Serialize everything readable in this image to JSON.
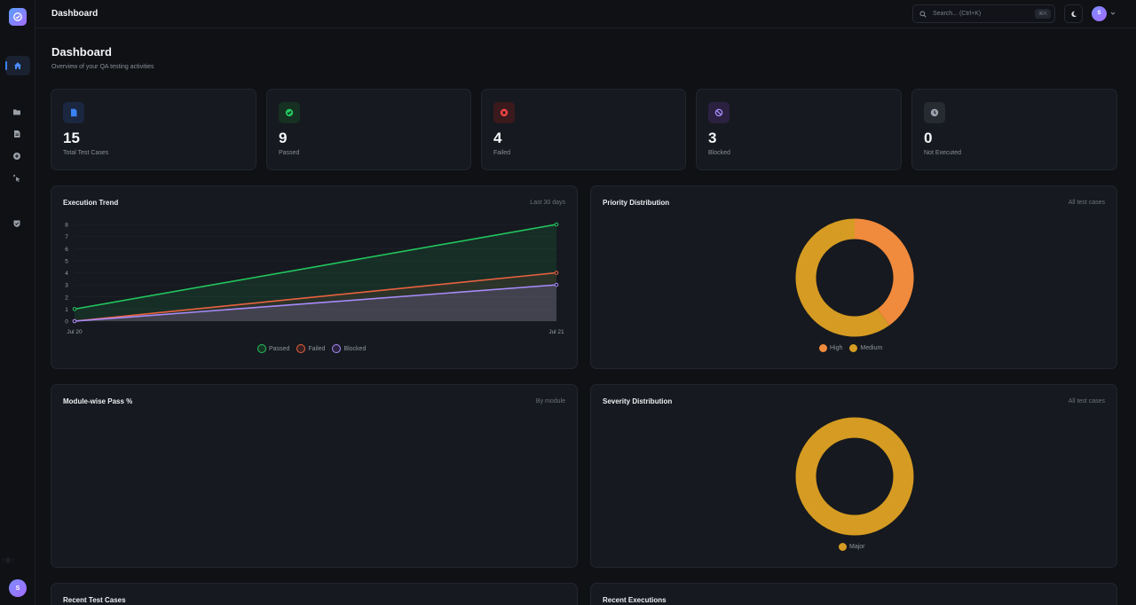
{
  "app": {
    "topbar_title": "Dashboard",
    "user_initial": "S"
  },
  "search": {
    "placeholder": "Search... (Ctrl+K)",
    "shortcut": "⌘K"
  },
  "sidebar": {
    "items": [
      {
        "name": "home",
        "icon": "home-icon",
        "active": true
      },
      {
        "name": "projects",
        "icon": "folder-icon"
      },
      {
        "name": "test-cases",
        "icon": "document-icon"
      },
      {
        "name": "add",
        "icon": "plus-circle-icon"
      },
      {
        "name": "executions",
        "icon": "pointer-click-icon"
      },
      {
        "name": "reports",
        "icon": "shield-check-icon"
      }
    ],
    "collapse_label": "‹ ||| ›"
  },
  "page": {
    "title": "Dashboard",
    "subtitle": "Overview of your QA testing activities"
  },
  "stats": [
    {
      "value": "15",
      "label": "Total Test Cases",
      "icon": "document-icon",
      "color": "#3b82f6",
      "bg": "#1b2740"
    },
    {
      "value": "9",
      "label": "Passed",
      "icon": "check-circle-icon",
      "color": "#22c55e",
      "bg": "#163022"
    },
    {
      "value": "4",
      "label": "Failed",
      "icon": "x-circle-icon",
      "color": "#ef4444",
      "bg": "#3a1a1c"
    },
    {
      "value": "3",
      "label": "Blocked",
      "icon": "ban-icon",
      "color": "#a78bfa",
      "bg": "#2a2140"
    },
    {
      "value": "0",
      "label": "Not Executed",
      "icon": "clock-icon",
      "color": "#9ca3af",
      "bg": "#262a31"
    }
  ],
  "panels": {
    "execution_trend": {
      "title": "Execution Trend",
      "meta": "Last 30 days"
    },
    "priority": {
      "title": "Priority Distribution",
      "meta": "All test cases"
    },
    "module": {
      "title": "Module-wise Pass %",
      "meta": "By module"
    },
    "severity": {
      "title": "Severity Distribution",
      "meta": "All test cases"
    },
    "recent_cases": {
      "title": "Recent Test Cases"
    },
    "recent_exec": {
      "title": "Recent Executions"
    }
  },
  "chart_data": [
    {
      "type": "area",
      "x": [
        "Jul 20",
        "Jul 21"
      ],
      "series": [
        {
          "name": "Passed",
          "values": [
            1,
            8
          ],
          "color": "#22c55e"
        },
        {
          "name": "Failed",
          "values": [
            0,
            4
          ],
          "color": "#e8623f"
        },
        {
          "name": "Blocked",
          "values": [
            0,
            3
          ],
          "color": "#a78bfa"
        }
      ],
      "ylim": [
        0,
        8
      ],
      "yticks": [
        "0",
        "1",
        "2",
        "3",
        "4",
        "5",
        "6",
        "7",
        "8"
      ],
      "grid": true,
      "legend": "bottom"
    },
    {
      "type": "pie",
      "donut": true,
      "categories": [
        "High",
        "Medium"
      ],
      "values": [
        40,
        60
      ],
      "colors": [
        "#f08a3c",
        "#d59b22"
      ],
      "legend": "bottom"
    },
    {
      "type": "pie",
      "donut": true,
      "categories": [
        "Major"
      ],
      "values": [
        100
      ],
      "colors": [
        "#d59b22"
      ],
      "legend": "bottom"
    }
  ]
}
